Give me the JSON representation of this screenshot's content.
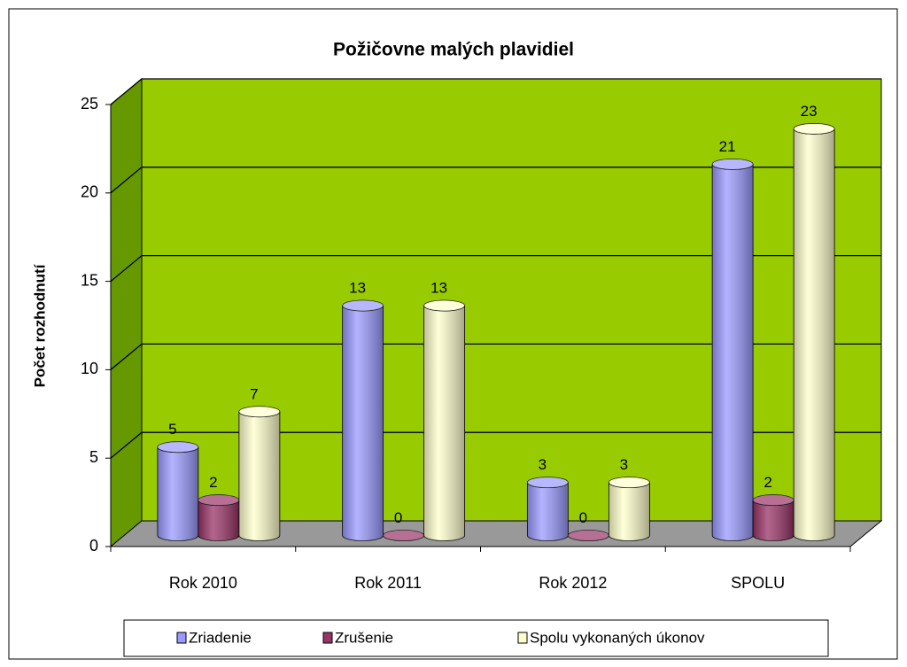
{
  "chart_data": {
    "type": "bar3d",
    "title": "Požičovne malých plavidiel",
    "y_label": "Počet rozhodnutí",
    "categories": [
      "Rok 2010",
      "Rok 2011",
      "Rok 2012",
      "SPOLU"
    ],
    "series": [
      {
        "name": "Zriadenie",
        "color": "#9999ff",
        "values": [
          5,
          13,
          3,
          21
        ]
      },
      {
        "name": "Zrušenie",
        "color": "#993366",
        "values": [
          2,
          0,
          0,
          2
        ]
      },
      {
        "name": "Spolu vykonaných úkonov",
        "color": "#ffffcc",
        "values": [
          7,
          13,
          3,
          23
        ]
      }
    ],
    "ylim": [
      0,
      25
    ],
    "yticks": [
      0,
      5,
      10,
      15,
      20,
      25
    ],
    "grid": true,
    "wall_color": "#99cc00",
    "side_wall_color": "#669900",
    "floor_color": "#999999",
    "legend": "bottom"
  }
}
